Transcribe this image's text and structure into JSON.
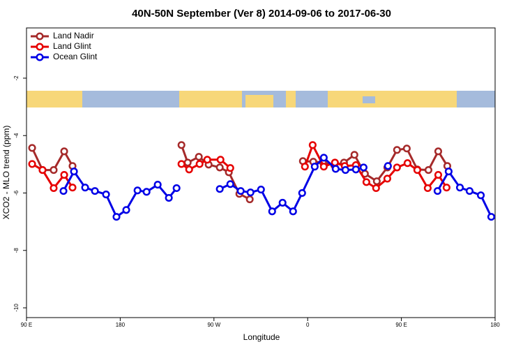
{
  "chart_data": {
    "type": "line",
    "title": "40N-50N September (Ver 8)   2014-09-06 to 2017-06-30",
    "x_label": "Longitude",
    "y_label": "XCO2 - MLO trend (ppm)",
    "xlim": [
      90,
      540
    ],
    "ylim": [
      -10.34,
      -0.25
    ],
    "xticks": [
      {
        "value": 90,
        "label": "90 E"
      },
      {
        "value": 180,
        "label": "180"
      },
      {
        "value": 270,
        "label": "90 W"
      },
      {
        "value": 360,
        "label": "0"
      },
      {
        "value": 450,
        "label": "90 E"
      },
      {
        "value": 540,
        "label": "180"
      }
    ],
    "yticks": [
      -2,
      -4,
      -6,
      -8,
      -10
    ],
    "legend": "top-left",
    "series": [
      {
        "name": "Land Nadir",
        "color": "#a52a2a",
        "x": [
          95.4,
          105.4,
          116.1,
          126.2,
          134.2,
          null,
          238.8,
          244.8,
          255.5,
          264.9,
          275.6,
          284.3,
          294.4,
          304.4,
          null,
          355.4,
          365.4,
          374.8,
          385.5,
          394.9,
          404.9,
          415.0,
          426.4,
          436.5,
          445.8,
          455.2,
          465.3,
          476.0,
          485.4,
          494.1
        ],
        "values": [
          -4.43,
          -5.2,
          -5.2,
          -4.55,
          -5.06,
          null,
          -4.33,
          -4.94,
          -4.74,
          -5.01,
          -5.11,
          -5.28,
          -6.03,
          -6.22,
          null,
          -4.89,
          -4.91,
          -4.94,
          -5.03,
          -4.94,
          -4.67,
          -5.33,
          -5.59,
          -5.11,
          -4.5,
          -4.45,
          -5.18,
          -5.2,
          -4.55,
          -5.06
        ]
      },
      {
        "name": "Land Glint",
        "color": "#e60000",
        "x": [
          95.4,
          105.4,
          116.1,
          126.2,
          134.2,
          null,
          238.8,
          246.2,
          256.2,
          263.6,
          276.3,
          285.7,
          null,
          357.4,
          364.8,
          375.5,
          386.2,
          395.6,
          406.3,
          416.4,
          425.7,
          436.5,
          445.8,
          455.9,
          465.3,
          475.3,
          485.4,
          493.4
        ],
        "values": [
          -4.99,
          -5.2,
          -5.83,
          -5.37,
          -5.81,
          null,
          -4.99,
          -5.18,
          -4.99,
          -4.84,
          -4.84,
          -5.13,
          null,
          -5.08,
          -4.33,
          -5.08,
          -4.94,
          -5.06,
          -5.03,
          -5.62,
          -5.83,
          -5.5,
          -5.11,
          -4.96,
          -5.2,
          -5.83,
          -5.37,
          -5.81
        ]
      },
      {
        "name": "Ocean Glint",
        "color": "#0000e6",
        "x": [
          125.5,
          135.6,
          146.3,
          155.7,
          166.4,
          176.4,
          185.8,
          196.6,
          205.3,
          216.0,
          226.7,
          234.1,
          null,
          275.6,
          285.7,
          295.7,
          305.1,
          315.2,
          325.9,
          335.9,
          346.0,
          354.7,
          366.8,
          375.5,
          386.9,
          396.3,
          406.3,
          413.7,
          null,
          437.1,
          null,
          484.7,
          495.4,
          506.2,
          515.5,
          526.3,
          536.3
        ],
        "values": [
          -5.93,
          -5.25,
          -5.81,
          -5.93,
          -6.05,
          -6.83,
          -6.59,
          -5.91,
          -5.96,
          -5.71,
          -6.17,
          -5.83,
          null,
          -5.86,
          -5.69,
          -5.93,
          -5.98,
          -5.88,
          -6.64,
          -6.34,
          -6.64,
          -6.0,
          -5.08,
          -4.77,
          -5.16,
          -5.2,
          -5.18,
          -5.11,
          null,
          -5.06,
          null,
          -5.93,
          -5.25,
          -5.81,
          -5.93,
          -6.08,
          -6.83
        ]
      }
    ]
  }
}
